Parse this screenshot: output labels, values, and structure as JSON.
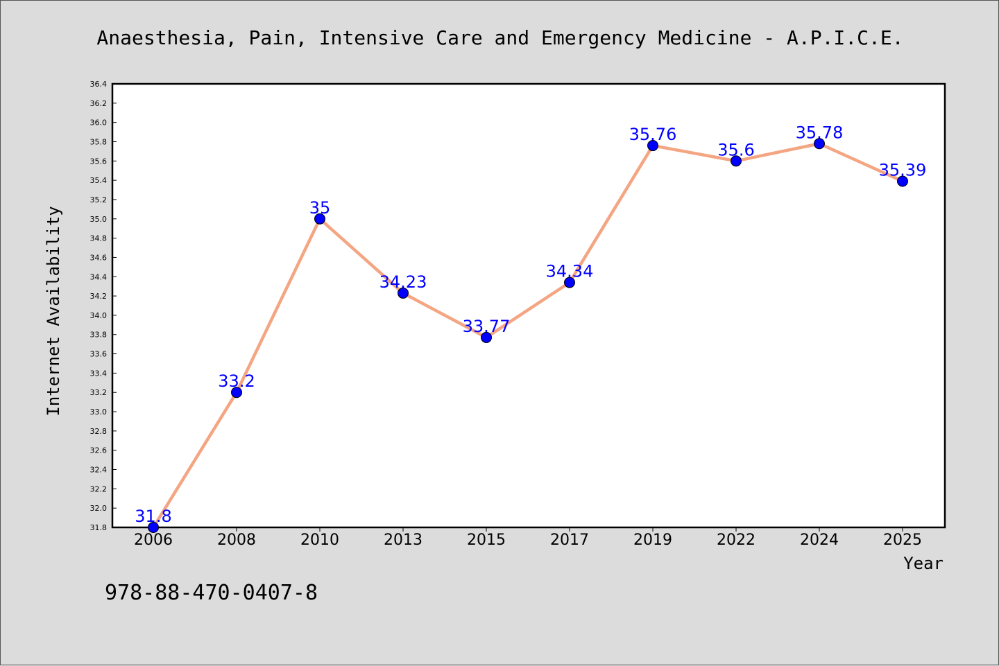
{
  "chart_data": {
    "type": "line",
    "title": "Anaesthesia, Pain, Intensive Care and Emergency Medicine - A.P.I.C.E.",
    "xlabel": "Year",
    "ylabel": "Internet Availability",
    "categories": [
      "2006",
      "2008",
      "2010",
      "2013",
      "2015",
      "2017",
      "2019",
      "2022",
      "2024",
      "2025"
    ],
    "series": [
      {
        "values": [
          31.8,
          33.2,
          35,
          34.23,
          33.77,
          34.34,
          35.76,
          35.6,
          35.78,
          35.39
        ],
        "labels": [
          "31.8",
          "33.2",
          "35",
          "34.23",
          "33.77",
          "34.34",
          "35.76",
          "35.6",
          "35.78",
          "35.39"
        ]
      }
    ],
    "ylim": [
      31.8,
      36.4
    ],
    "ytick_step": 0.2,
    "grid": false,
    "line_color": "#f4a582",
    "marker_color": "#0000ff"
  },
  "footer_text": "978-88-470-0407-8"
}
